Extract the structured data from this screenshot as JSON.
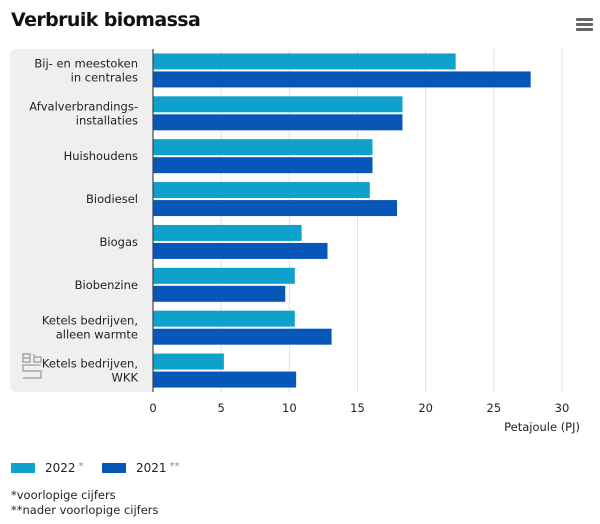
{
  "header": {
    "title": "Verbruik biomassa",
    "menu_icon": "hamburger-menu-icon"
  },
  "chart_data": {
    "type": "bar",
    "orientation": "horizontal",
    "title": "Verbruik biomassa",
    "xlabel": "Petajoule (PJ)",
    "ylabel": "",
    "xlim": [
      0,
      30
    ],
    "xticks": [
      0,
      5,
      10,
      15,
      20,
      25,
      30
    ],
    "xtick_labels": [
      "0",
      "5",
      "10",
      "15",
      "20",
      "25",
      "30"
    ],
    "grid": true,
    "categories": [
      [
        "Bij- en meestoken",
        "in centrales"
      ],
      [
        "Afvalverbrandings-",
        "installaties"
      ],
      [
        "Huishoudens"
      ],
      [
        "Biodiesel"
      ],
      [
        "Biogas"
      ],
      [
        "Biobenzine"
      ],
      [
        "Ketels bedrijven,",
        "alleen warmte"
      ],
      [
        "Ketels bedrijven,",
        "WKK"
      ]
    ],
    "series": [
      {
        "name": "2022",
        "marker": "*",
        "color": "#0ea1cc",
        "values": [
          22.2,
          18.3,
          16.1,
          15.9,
          10.9,
          10.4,
          10.4,
          5.2
        ]
      },
      {
        "name": "2021",
        "marker": "**",
        "color": "#0757b8",
        "values": [
          27.7,
          18.3,
          16.1,
          17.9,
          12.8,
          9.7,
          13.1,
          10.5
        ]
      }
    ],
    "legend_position": "bottom-left"
  },
  "legend": [
    {
      "label": "2022",
      "marker": "*",
      "color": "#0ea1cc"
    },
    {
      "label": "2021",
      "marker": "**",
      "color": "#0757b8"
    }
  ],
  "notes": [
    "*voorlopige cijfers",
    "**nader voorlopige cijfers"
  ],
  "logo": "cbs-logo-icon"
}
